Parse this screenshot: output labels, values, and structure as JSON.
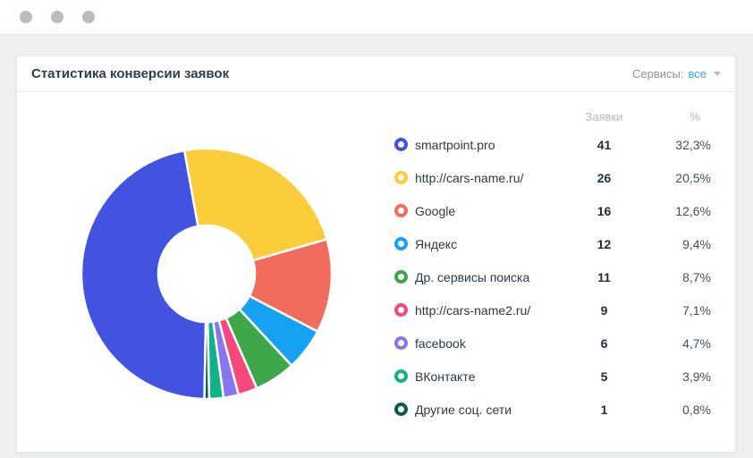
{
  "header": {
    "title": "Статистика конверсии заявок",
    "services_label": "Сервисы:",
    "services_value": "все"
  },
  "table": {
    "col_requests": "Заявки",
    "col_percent": "%"
  },
  "chart_data": {
    "type": "pie",
    "donut": true,
    "title": "Статистика конверсии заявок",
    "legend_position": "right",
    "columns": [
      "Заявки",
      "%"
    ],
    "angles_note": "arc_deg are visual segment boundaries, degrees clockwise from 12 o'clock",
    "series": [
      {
        "label": "smartpoint.pro",
        "value": 41,
        "percent": "32,3%",
        "color": "#4252E1",
        "arc_deg": [
          181.0,
          349.8
        ]
      },
      {
        "label": "http://cars-name.ru/",
        "value": 26,
        "percent": "20,5%",
        "color": "#FBCD3B",
        "arc_deg": [
          -10.2,
          74.0
        ]
      },
      {
        "label": "Google",
        "value": 16,
        "percent": "12,6%",
        "color": "#F26C5E",
        "arc_deg": [
          74.0,
          117.5
        ]
      },
      {
        "label": "Яндекс",
        "value": 12,
        "percent": "9,4%",
        "color": "#16A2F3",
        "arc_deg": [
          117.5,
          137.2
        ]
      },
      {
        "label": "Др. сервисы поиска",
        "value": 11,
        "percent": "8,7%",
        "color": "#3EA74A",
        "arc_deg": [
          137.2,
          156.3
        ]
      },
      {
        "label": "http://cars-name2.ru/",
        "value": 9,
        "percent": "7,1%",
        "color": "#F7487B",
        "arc_deg": [
          156.3,
          165.2
        ]
      },
      {
        "label": "facebook",
        "value": 6,
        "percent": "4,7%",
        "color": "#8775F1",
        "arc_deg": [
          165.2,
          172.2
        ]
      },
      {
        "label": "ВКонтакте",
        "value": 5,
        "percent": "3,9%",
        "color": "#12B189",
        "arc_deg": [
          172.2,
          178.8
        ]
      },
      {
        "label": "Другие соц. сети",
        "value": 1,
        "percent": "0,8%",
        "color": "#0B5C4F",
        "arc_deg": [
          178.8,
          181.0
        ]
      }
    ]
  }
}
